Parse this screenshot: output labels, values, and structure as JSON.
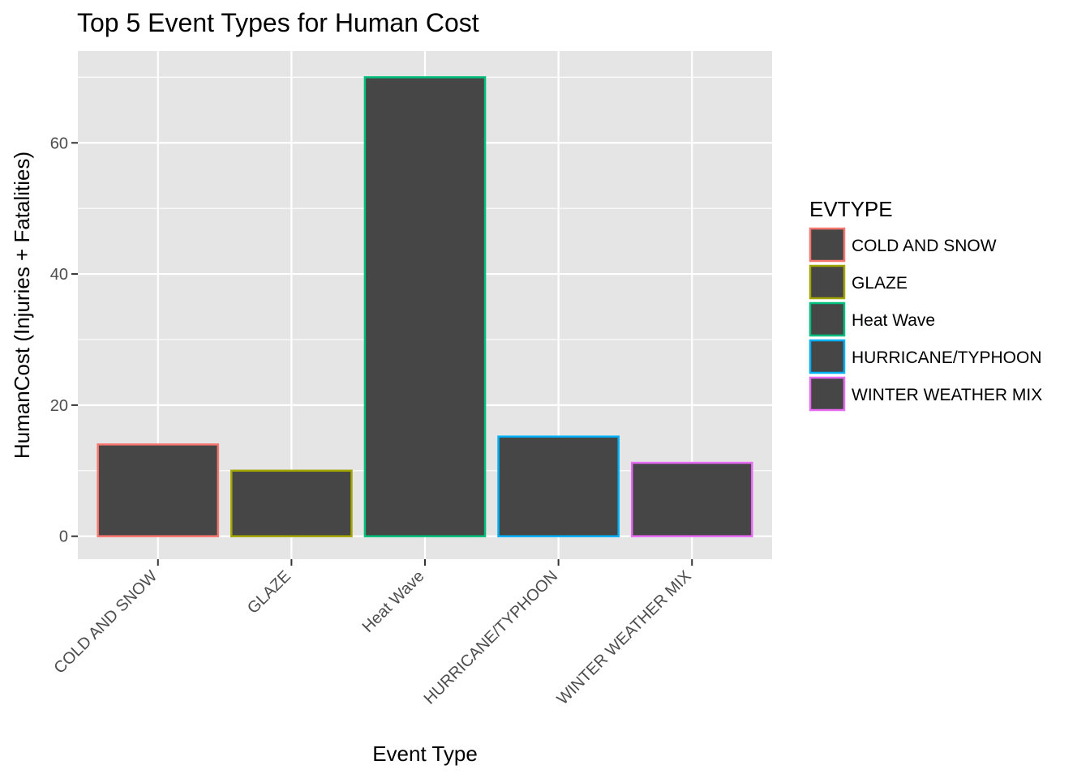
{
  "chart_data": {
    "type": "bar",
    "title": "Top 5 Event Types for Human Cost",
    "xlabel": "Event Type",
    "ylabel": "HumanCost (Injuries + Fatalities)",
    "categories": [
      "COLD AND SNOW",
      "GLAZE",
      "Heat Wave",
      "HURRICANE/TYPHOON",
      "WINTER WEATHER MIX"
    ],
    "values": [
      14,
      10,
      70,
      15.2,
      11.2
    ],
    "ylim": [
      -3.5,
      74
    ],
    "yticks": [
      0,
      20,
      40,
      60
    ],
    "ytick_labels": [
      "0",
      "20",
      "40",
      "60"
    ],
    "grid": true,
    "bar_fill": "#464646",
    "outline_colors": [
      "#F8766D",
      "#A3A500",
      "#00BF7D",
      "#00B0F6",
      "#E76BF3"
    ],
    "panel_background": "#E5E5E5",
    "legend": {
      "title": "EVTYPE",
      "position": "right",
      "entries": [
        "COLD AND SNOW",
        "GLAZE",
        "Heat Wave",
        "HURRICANE/TYPHOON",
        "WINTER WEATHER MIX"
      ]
    }
  }
}
